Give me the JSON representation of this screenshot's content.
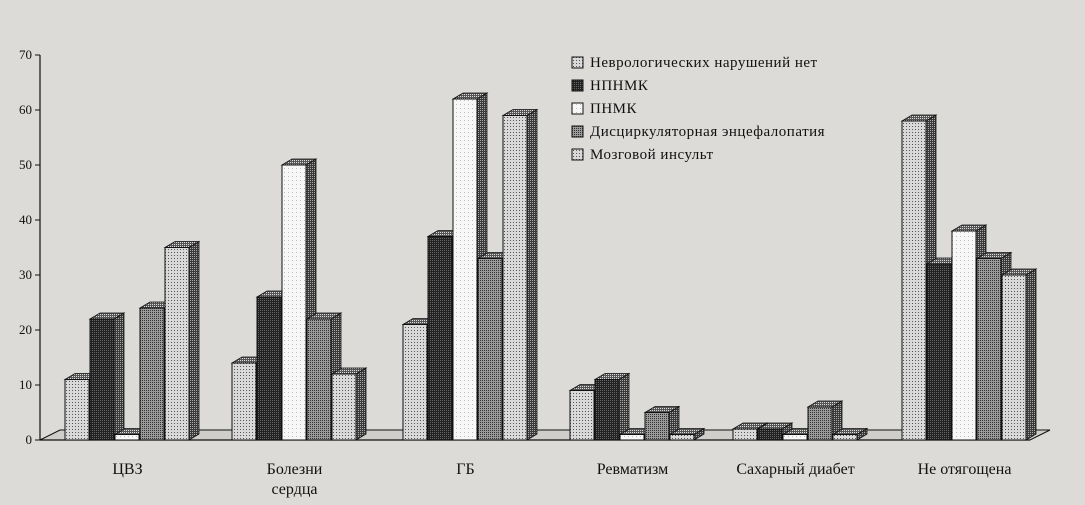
{
  "chart_data": {
    "type": "bar",
    "categories": [
      [
        "ЦВЗ"
      ],
      [
        "Болезни",
        "сердца"
      ],
      [
        "ГБ"
      ],
      [
        "Ревматизм"
      ],
      [
        "Сахарный диабет"
      ],
      [
        "Не отягощена"
      ]
    ],
    "series": [
      {
        "name": "Неврологических нарушений нет",
        "values": [
          11,
          14,
          21,
          9,
          2,
          58
        ],
        "pattern": "light-dots"
      },
      {
        "name": "НПНМК",
        "values": [
          22,
          26,
          37,
          11,
          2,
          32
        ],
        "pattern": "dark"
      },
      {
        "name": "ПНМК",
        "values": [
          1,
          50,
          62,
          1,
          1,
          38
        ],
        "pattern": "white"
      },
      {
        "name": "Дисциркуляторная энцефалопатия",
        "values": [
          24,
          22,
          33,
          5,
          6,
          33
        ],
        "pattern": "medium"
      },
      {
        "name": "Мозговой инсульт",
        "values": [
          35,
          12,
          59,
          1,
          1,
          30
        ],
        "pattern": "light-dots"
      }
    ],
    "ylim": [
      0,
      70
    ],
    "yticks": [
      0,
      10,
      20,
      30,
      40,
      50,
      60,
      70
    ],
    "legend": "top-center",
    "grid": false,
    "colors": {
      "background": "#dcdbd8",
      "ink": "#111111",
      "light": "#d2d2d2",
      "medium": "#8a8a8a",
      "dark": "#2a2a2a",
      "white": "#f7f7f7"
    }
  }
}
